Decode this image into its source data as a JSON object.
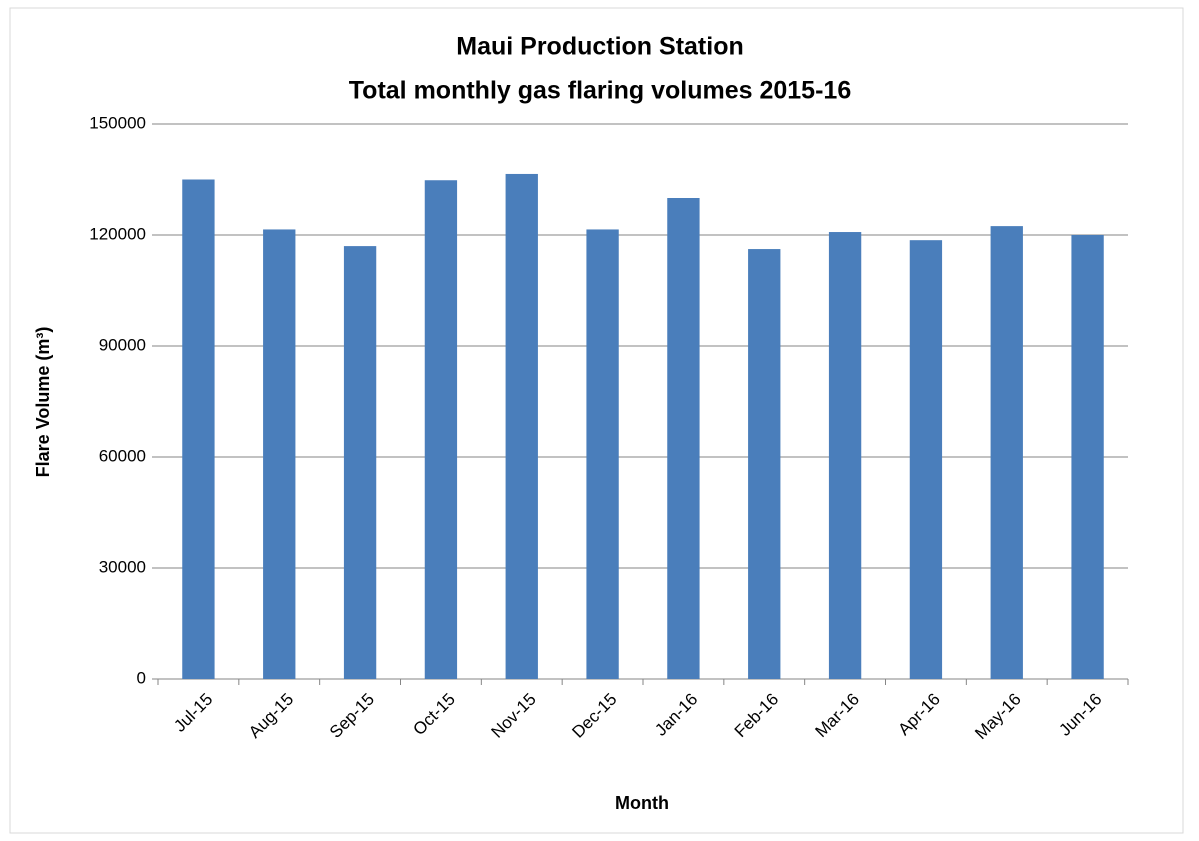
{
  "chart_data": {
    "type": "bar",
    "title": "Maui Production Station",
    "subtitle": "Total monthly gas flaring volumes 2015-16",
    "x_label": "Month",
    "y_label": "Flare Volume (m³)",
    "categories": [
      "Jul-15",
      "Aug-15",
      "Sep-15",
      "Oct-15",
      "Nov-15",
      "Dec-15",
      "Jan-16",
      "Feb-16",
      "Mar-16",
      "Apr-16",
      "May-16",
      "Jun-16"
    ],
    "values": [
      135000,
      121500,
      117000,
      134800,
      136500,
      121500,
      130000,
      116200,
      120800,
      118600,
      122400,
      120000
    ],
    "color": "#4a7ebb",
    "ylim": [
      0,
      150000
    ],
    "yticks": [
      0,
      30000,
      60000,
      90000,
      120000,
      150000
    ],
    "grid": true
  }
}
